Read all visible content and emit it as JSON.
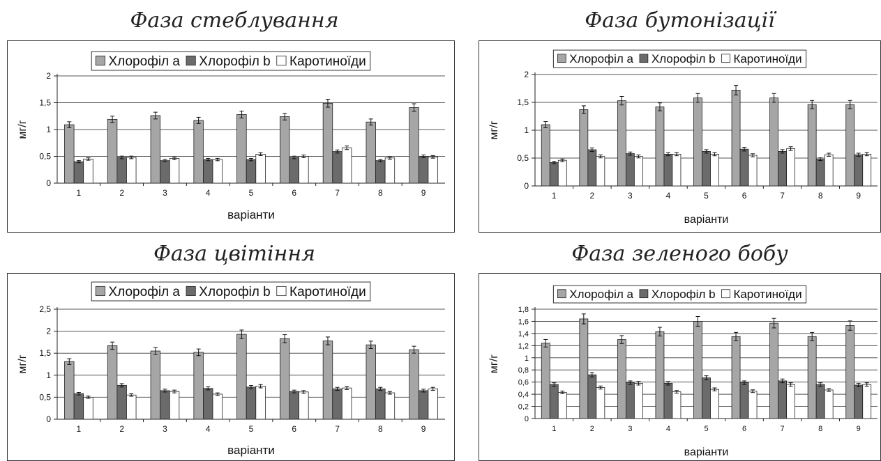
{
  "series_colors": {
    "a": "#a6a6a6",
    "b": "#6b6b6b",
    "c": "#ffffff"
  },
  "chart_data": [
    {
      "type": "bar",
      "title": "Фаза стеблування",
      "xlabel": "варіанти",
      "ylabel": "мг/г",
      "ylim": [
        0,
        2
      ],
      "yticks": [
        "0",
        "0,5",
        "1",
        "1,5",
        "2"
      ],
      "categories": [
        "1",
        "2",
        "3",
        "4",
        "5",
        "6",
        "7",
        "8",
        "9"
      ],
      "grid": true,
      "legend": "top",
      "series": [
        {
          "name": "Хлорофіл а",
          "values": [
            1.09,
            1.19,
            1.26,
            1.17,
            1.28,
            1.24,
            1.49,
            1.14,
            1.41
          ]
        },
        {
          "name": "Хлорофіл b",
          "values": [
            0.4,
            0.48,
            0.42,
            0.44,
            0.44,
            0.48,
            0.59,
            0.42,
            0.5
          ]
        },
        {
          "name": "Каротиноїди",
          "values": [
            0.45,
            0.48,
            0.46,
            0.44,
            0.54,
            0.5,
            0.66,
            0.47,
            0.49
          ]
        }
      ]
    },
    {
      "type": "bar",
      "title": "Фаза бутонізації",
      "xlabel": "варіанти",
      "ylabel": "мг/г",
      "ylim": [
        0,
        2
      ],
      "yticks": [
        "0",
        "0,5",
        "1",
        "1,5",
        "2"
      ],
      "categories": [
        "1",
        "2",
        "3",
        "4",
        "5",
        "6",
        "7",
        "8",
        "9"
      ],
      "grid": true,
      "legend": "top",
      "series": [
        {
          "name": "Хлорофіл а",
          "values": [
            1.1,
            1.37,
            1.53,
            1.42,
            1.58,
            1.72,
            1.58,
            1.46,
            1.46
          ]
        },
        {
          "name": "Хлорофіл b",
          "values": [
            0.42,
            0.65,
            0.58,
            0.57,
            0.62,
            0.66,
            0.62,
            0.48,
            0.56
          ]
        },
        {
          "name": "Каротиноїди",
          "values": [
            0.46,
            0.53,
            0.53,
            0.57,
            0.57,
            0.55,
            0.67,
            0.56,
            0.57
          ]
        }
      ]
    },
    {
      "type": "bar",
      "title": "Фаза цвітіння",
      "xlabel": "варіанти",
      "ylabel": "мг/г",
      "ylim": [
        0,
        2.5
      ],
      "yticks": [
        "0",
        "0,5",
        "1",
        "1,5",
        "2",
        "2,5"
      ],
      "categories": [
        "1",
        "2",
        "3",
        "4",
        "5",
        "6",
        "7",
        "8",
        "9"
      ],
      "grid": true,
      "legend": "top",
      "series": [
        {
          "name": "Хлорофіл а",
          "values": [
            1.31,
            1.67,
            1.55,
            1.52,
            1.93,
            1.83,
            1.78,
            1.69,
            1.58
          ]
        },
        {
          "name": "Хлорофіл b",
          "values": [
            0.58,
            0.77,
            0.65,
            0.7,
            0.73,
            0.63,
            0.69,
            0.69,
            0.65
          ]
        },
        {
          "name": "Каротиноїди",
          "values": [
            0.5,
            0.55,
            0.63,
            0.57,
            0.75,
            0.62,
            0.71,
            0.6,
            0.69
          ]
        }
      ]
    },
    {
      "type": "bar",
      "title": "Фаза зеленого бобу",
      "xlabel": "варіанти",
      "ylabel": "мг/г",
      "ylim": [
        0,
        1.8
      ],
      "yticks": [
        "0",
        "0,2",
        "0,4",
        "0,6",
        "0,8",
        "1",
        "1,2",
        "1,4",
        "1,6",
        "1,8"
      ],
      "categories": [
        "1",
        "2",
        "3",
        "4",
        "5",
        "6",
        "7",
        "8",
        "9"
      ],
      "grid": true,
      "legend": "top",
      "series": [
        {
          "name": "Хлорофіл а",
          "values": [
            1.24,
            1.64,
            1.3,
            1.43,
            1.6,
            1.35,
            1.57,
            1.35,
            1.53
          ]
        },
        {
          "name": "Хлорофіл b",
          "values": [
            0.56,
            0.72,
            0.59,
            0.58,
            0.67,
            0.59,
            0.62,
            0.56,
            0.55
          ]
        },
        {
          "name": "Каротиноїди",
          "values": [
            0.43,
            0.51,
            0.58,
            0.44,
            0.48,
            0.45,
            0.56,
            0.47,
            0.56
          ]
        }
      ]
    }
  ]
}
